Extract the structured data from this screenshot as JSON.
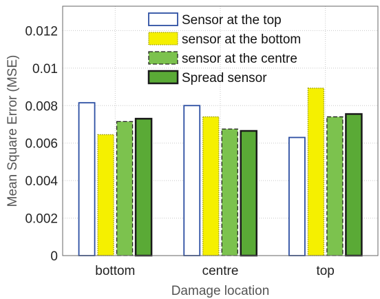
{
  "chart_data": {
    "type": "bar",
    "title": "",
    "xlabel": "Damage location",
    "ylabel": "Mean Square Error (MSE)",
    "categories": [
      "bottom",
      "centre",
      "top"
    ],
    "ylim": [
      0,
      0.0133
    ],
    "yticks": [
      0,
      0.002,
      0.004,
      0.006,
      0.008,
      0.01,
      0.012
    ],
    "ytick_labels": [
      "0",
      "0.002",
      "0.004",
      "0.006",
      "0.008",
      "0.01",
      "0.012"
    ],
    "grid": true,
    "legend_position": "top-center",
    "series": [
      {
        "name": "Sensor at the top",
        "values": [
          0.00815,
          0.008,
          0.0063
        ],
        "fill": "#ffffff",
        "stroke": "#2b4ea2",
        "dash": "none"
      },
      {
        "name": "sensor at the bottom",
        "values": [
          0.00645,
          0.0074,
          0.00893
        ],
        "fill": "#f5f000",
        "stroke": "#9a9a00",
        "dash": "1.5 1.5"
      },
      {
        "name": "sensor at the centre",
        "values": [
          0.00715,
          0.00675,
          0.0074
        ],
        "fill": "#7cc24e",
        "stroke": "#222222",
        "dash": "6 3"
      },
      {
        "name": "Spread sensor",
        "values": [
          0.0073,
          0.00665,
          0.00755
        ],
        "fill": "#5aaa36",
        "stroke": "#1a1a1a",
        "dash": "none"
      }
    ]
  }
}
